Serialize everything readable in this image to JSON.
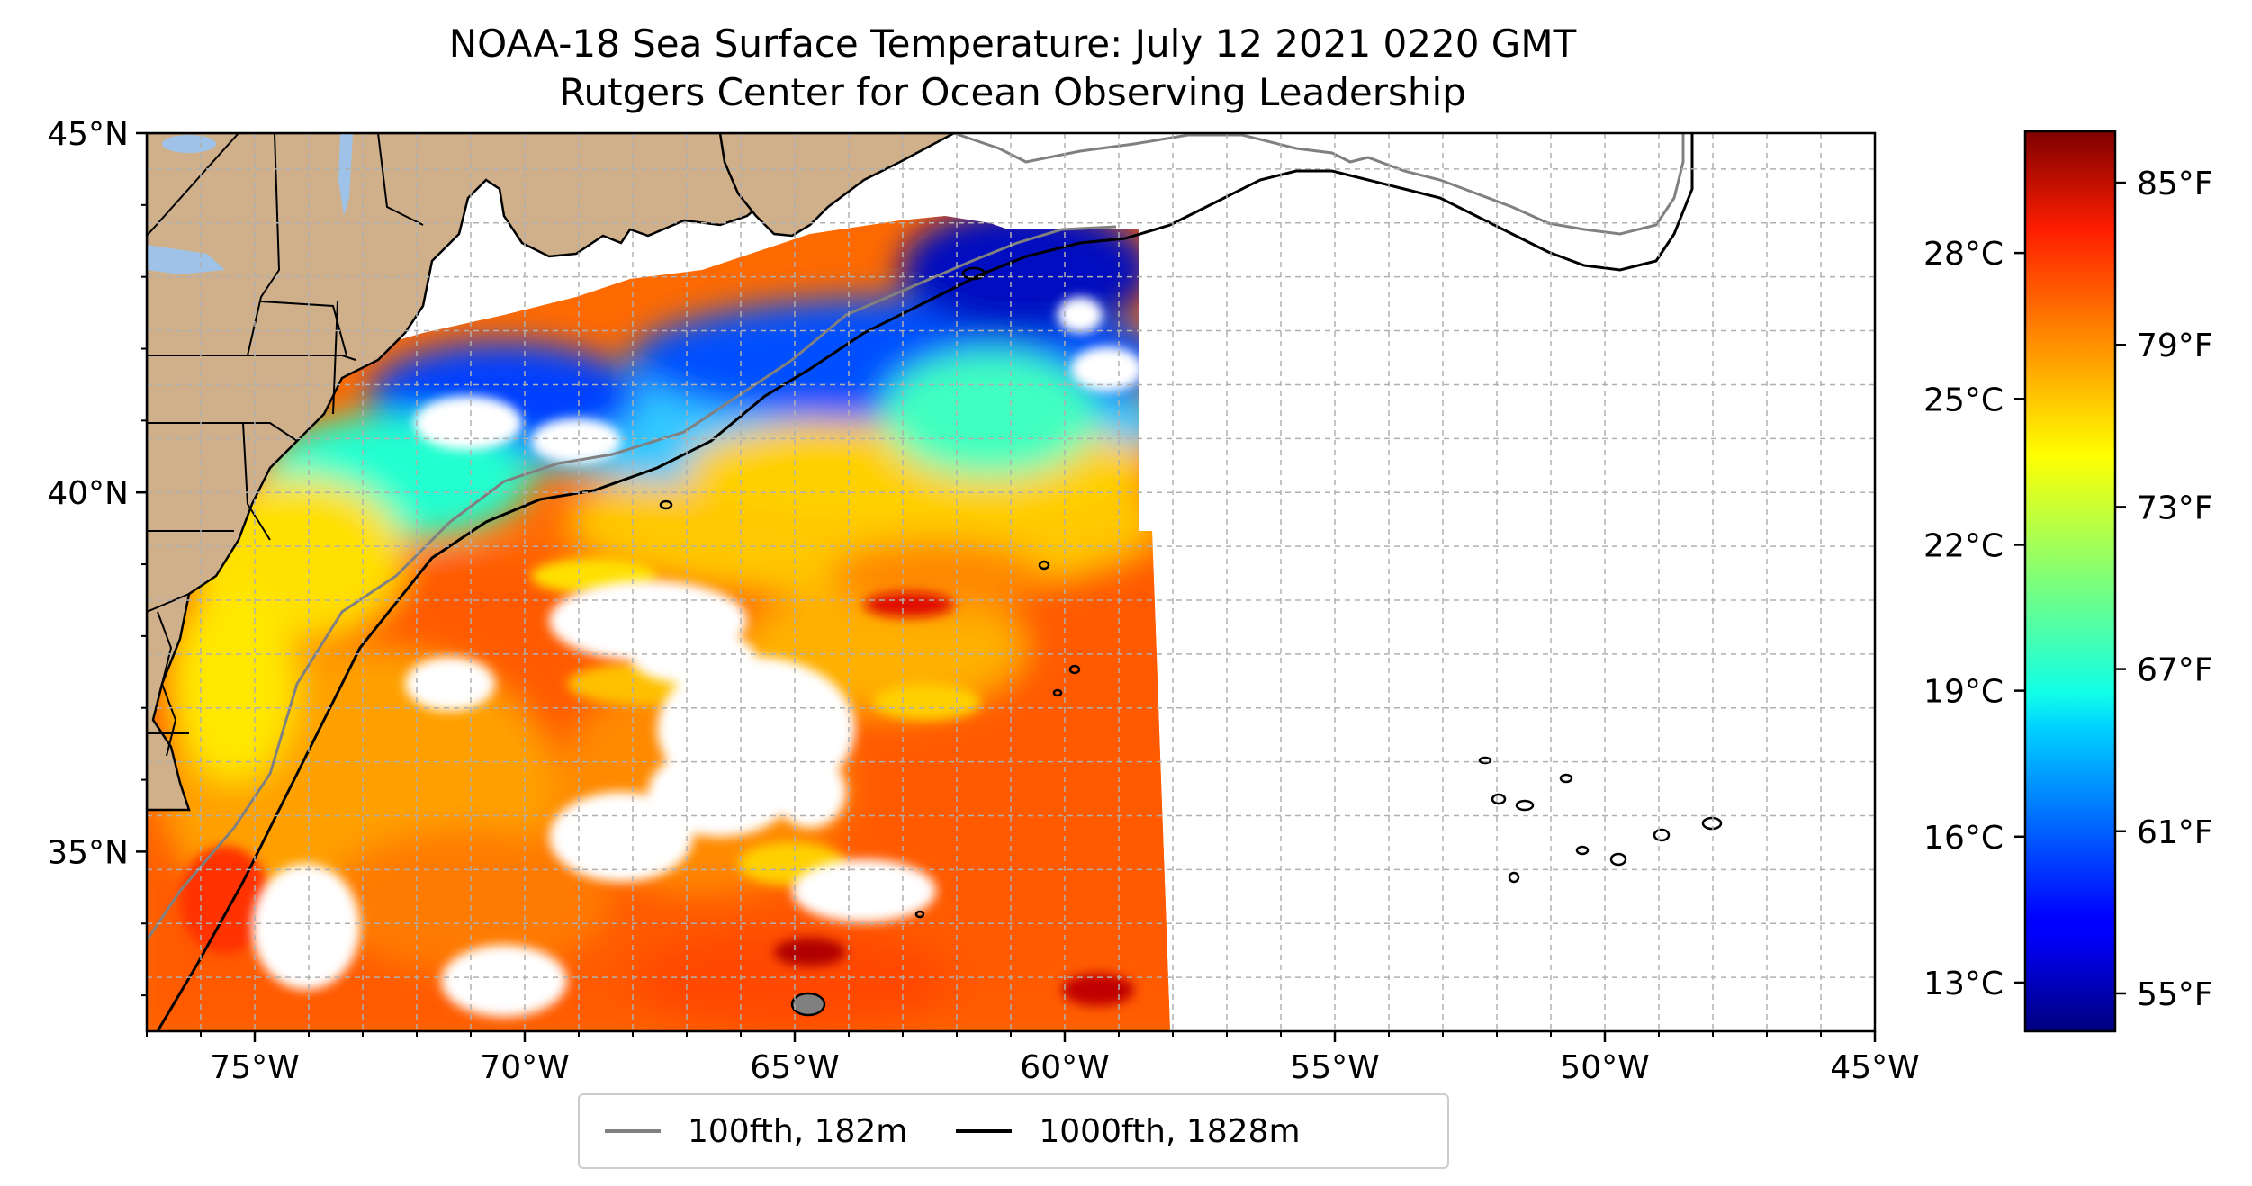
{
  "title": {
    "line1": "NOAA-18 Sea Surface Temperature: July 12 2021 0220 GMT",
    "line2": "Rutgers Center for Ocean Observing Leadership"
  },
  "map": {
    "lon_range": [
      -77,
      -45
    ],
    "lat_range": [
      32.5,
      45
    ],
    "lon_ticks": [
      -75,
      -70,
      -65,
      -60,
      -55,
      -50,
      -45
    ],
    "lon_tick_labels": [
      "75°W",
      "70°W",
      "65°W",
      "60°W",
      "55°W",
      "50°W",
      "45°W"
    ],
    "lat_ticks": [
      35,
      40,
      45
    ],
    "lat_tick_labels": [
      "35°N",
      "40°N",
      "45°N"
    ],
    "grid": true,
    "colors": {
      "land": "#cfb08a",
      "lakes": "#9fc3e8",
      "no_data": "#ffffff",
      "isobath_100fth": "#808080",
      "isobath_1000fth": "#000000"
    }
  },
  "colorbar": {
    "colormap": "jet",
    "celsius_ticks": [
      13,
      16,
      19,
      22,
      25,
      28
    ],
    "celsius_labels": [
      "13°C",
      "16°C",
      "19°C",
      "22°C",
      "25°C",
      "28°C"
    ],
    "fahrenheit_ticks": [
      55,
      61,
      67,
      73,
      79,
      85
    ],
    "fahrenheit_labels": [
      "55°F",
      "61°F",
      "67°F",
      "73°F",
      "79°F",
      "85°F"
    ]
  },
  "legend": {
    "entries": [
      {
        "label": "100fth, 182m",
        "color": "#808080"
      },
      {
        "label": "1000fth, 1828m",
        "color": "#000000"
      }
    ]
  }
}
